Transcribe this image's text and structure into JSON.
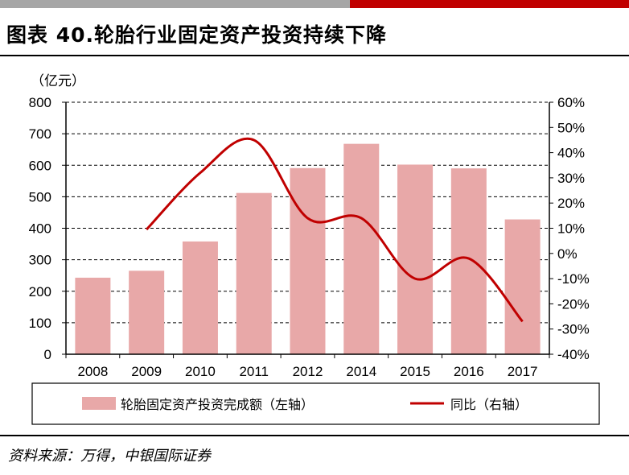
{
  "header": {
    "title": "图表 40.轮胎行业固定资产投资持续下降",
    "accent_grey": "#a6a6a6",
    "accent_red": "#c00000"
  },
  "footer": {
    "source": "资料来源：万得，中银国际证券"
  },
  "chart_data": {
    "type": "bar",
    "title": "图表 40.轮胎行业固定资产投资持续下降",
    "unit_label": "（亿元）",
    "categories": [
      "2008",
      "2009",
      "2010",
      "2011",
      "2012",
      "2014",
      "2015",
      "2016",
      "2017"
    ],
    "series": [
      {
        "name": "轮胎固定资产投资完成额（左轴）",
        "type": "bar",
        "axis": "left",
        "color": "#e8a8a8",
        "values": [
          243,
          265,
          358,
          512,
          591,
          668,
          602,
          590,
          428
        ]
      },
      {
        "name": "同比（右轴）",
        "type": "line",
        "axis": "right",
        "color": "#c00000",
        "values": [
          null,
          9.5,
          32,
          45,
          14,
          14,
          -10,
          -2,
          -27
        ]
      }
    ],
    "left_axis": {
      "ylim": [
        0,
        800
      ],
      "ticks": [
        "0",
        "100",
        "200",
        "300",
        "400",
        "500",
        "600",
        "700",
        "800"
      ]
    },
    "right_axis": {
      "ylim": [
        -40,
        60
      ],
      "ticks": [
        "-40%",
        "-30%",
        "-20%",
        "-10%",
        "0%",
        "10%",
        "20%",
        "30%",
        "40%",
        "50%",
        "60%"
      ]
    },
    "grid": "dashed horizontal",
    "legend_position": "bottom"
  }
}
